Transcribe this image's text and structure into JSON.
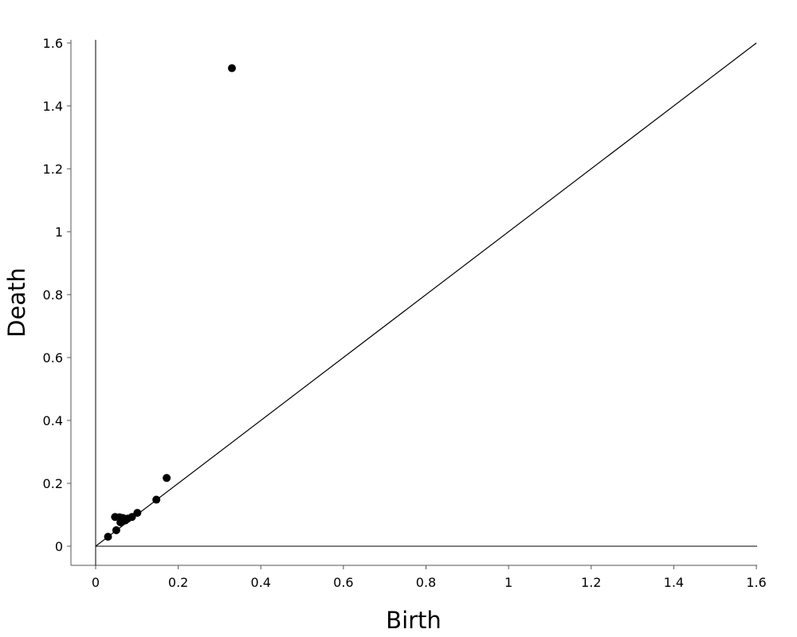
{
  "chart_data": {
    "type": "scatter",
    "title": "",
    "xlabel": "Birth",
    "ylabel": "Death",
    "xlim": [
      0,
      1.6
    ],
    "ylim": [
      0,
      1.6
    ],
    "x_ticks": [
      "0",
      "0.2",
      "0.4",
      "0.6",
      "0.8",
      "1",
      "1.2",
      "1.4",
      "1.6"
    ],
    "y_ticks": [
      "0",
      "0.2",
      "0.4",
      "0.6",
      "0.8",
      "1",
      "1.2",
      "1.4",
      "1.6"
    ],
    "grid": false,
    "legend": "none",
    "reference_lines": [
      "x = 0",
      "y = 0",
      "y = x"
    ],
    "marker_color": "#000000",
    "line_color": "#000000",
    "series": [
      {
        "points": [
          {
            "x": 0.33,
            "y": 1.52
          },
          {
            "x": 0.172,
            "y": 0.217
          },
          {
            "x": 0.147,
            "y": 0.148
          },
          {
            "x": 0.101,
            "y": 0.106
          },
          {
            "x": 0.088,
            "y": 0.093
          },
          {
            "x": 0.078,
            "y": 0.088
          },
          {
            "x": 0.072,
            "y": 0.082
          },
          {
            "x": 0.066,
            "y": 0.09
          },
          {
            "x": 0.06,
            "y": 0.076
          },
          {
            "x": 0.058,
            "y": 0.092
          },
          {
            "x": 0.047,
            "y": 0.093
          },
          {
            "x": 0.05,
            "y": 0.051
          },
          {
            "x": 0.03,
            "y": 0.03
          }
        ]
      }
    ]
  }
}
